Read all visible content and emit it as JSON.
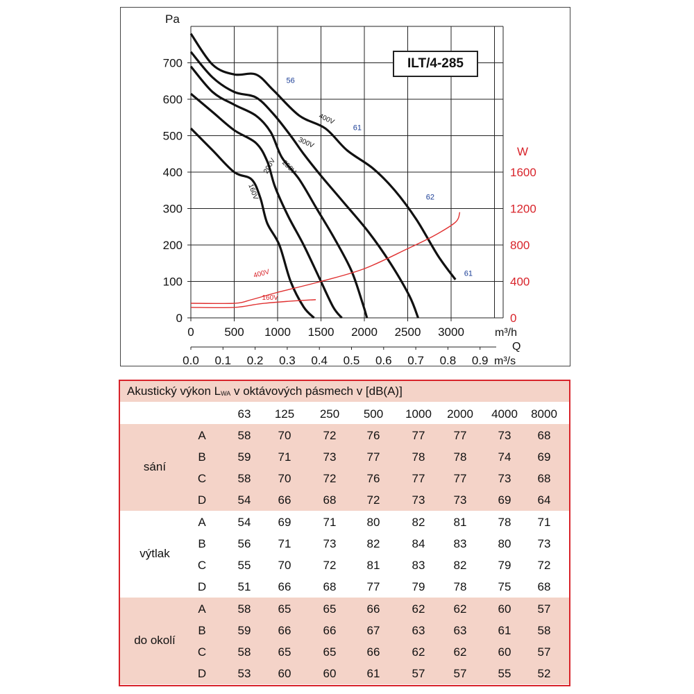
{
  "chart_data": {
    "type": "line",
    "model": "ILT/4-285",
    "y_left": {
      "unit": "Pa",
      "ticks": [
        "0",
        "100",
        "200",
        "300",
        "400",
        "500",
        "600",
        "700"
      ],
      "range": [
        0,
        800
      ]
    },
    "y_right": {
      "unit": "W",
      "ticks": [
        "0",
        "400",
        "800",
        "1200",
        "1600"
      ],
      "range": [
        0,
        1600
      ]
    },
    "x_top": {
      "unit": "m³/h",
      "ticks": [
        "0",
        "500",
        "1000",
        "1500",
        "2000",
        "2500",
        "3000"
      ],
      "range": [
        0,
        3600
      ]
    },
    "x_label": "Q",
    "x_bottom": {
      "unit": "m³/s",
      "ticks": [
        "0.0",
        "0.1",
        "0.2",
        "0.3",
        "0.4",
        "0.5",
        "0.6",
        "0.7",
        "0.8",
        "0.9"
      ]
    },
    "pressure_series": [
      {
        "name": "400V",
        "points": [
          [
            0,
            780
          ],
          [
            250,
            695
          ],
          [
            500,
            668
          ],
          [
            750,
            668
          ],
          [
            950,
            625
          ],
          [
            1250,
            555
          ],
          [
            1550,
            520
          ],
          [
            1800,
            460
          ],
          [
            2100,
            410
          ],
          [
            2350,
            350
          ],
          [
            2600,
            270
          ],
          [
            2850,
            170
          ],
          [
            3050,
            105
          ]
        ]
      },
      {
        "name": "300V",
        "points": [
          [
            0,
            730
          ],
          [
            250,
            660
          ],
          [
            500,
            620
          ],
          [
            750,
            605
          ],
          [
            950,
            560
          ],
          [
            1150,
            500
          ],
          [
            1300,
            450
          ],
          [
            1500,
            390
          ],
          [
            1750,
            320
          ],
          [
            2050,
            235
          ],
          [
            2300,
            150
          ],
          [
            2520,
            60
          ],
          [
            2620,
            0
          ]
        ]
      },
      {
        "name": "250V",
        "points": [
          [
            0,
            690
          ],
          [
            250,
            620
          ],
          [
            500,
            585
          ],
          [
            750,
            555
          ],
          [
            920,
            510
          ],
          [
            1050,
            440
          ],
          [
            1250,
            380
          ],
          [
            1450,
            300
          ],
          [
            1650,
            220
          ],
          [
            1850,
            130
          ],
          [
            1980,
            40
          ],
          [
            2030,
            0
          ]
        ]
      },
      {
        "name": "200V",
        "points": [
          [
            0,
            615
          ],
          [
            250,
            565
          ],
          [
            500,
            515
          ],
          [
            750,
            480
          ],
          [
            880,
            430
          ],
          [
            970,
            360
          ],
          [
            1120,
            280
          ],
          [
            1300,
            200
          ],
          [
            1480,
            110
          ],
          [
            1640,
            30
          ],
          [
            1740,
            0
          ]
        ]
      },
      {
        "name": "160V",
        "points": [
          [
            0,
            520
          ],
          [
            250,
            460
          ],
          [
            500,
            400
          ],
          [
            700,
            380
          ],
          [
            800,
            330
          ],
          [
            880,
            260
          ],
          [
            1020,
            200
          ],
          [
            1150,
            100
          ],
          [
            1300,
            30
          ],
          [
            1420,
            0
          ]
        ]
      }
    ],
    "power_series": [
      {
        "name": "400V",
        "points": [
          [
            0,
            160
          ],
          [
            500,
            160
          ],
          [
            700,
            200
          ],
          [
            1000,
            280
          ],
          [
            1500,
            400
          ],
          [
            2000,
            540
          ],
          [
            2500,
            760
          ],
          [
            2800,
            900
          ],
          [
            3050,
            1050
          ],
          [
            3100,
            1160
          ]
        ]
      },
      {
        "name": "160V",
        "points": [
          [
            0,
            115
          ],
          [
            500,
            115
          ],
          [
            800,
            155
          ],
          [
            1100,
            180
          ],
          [
            1440,
            200
          ]
        ]
      }
    ],
    "point_labels": [
      {
        "text": "56",
        "q": 1100,
        "p": 645,
        "color": "#1b3e96"
      },
      {
        "text": "61",
        "q": 1870,
        "p": 515,
        "color": "#1b3e96"
      },
      {
        "text": "62",
        "q": 2710,
        "p": 325,
        "color": "#1b3e96"
      },
      {
        "text": "61",
        "q": 3150,
        "p": 115,
        "color": "#1b3e96"
      }
    ],
    "curve_labels": [
      {
        "text": "400V",
        "q": 1470,
        "p": 550,
        "rot": 25,
        "color": "#111"
      },
      {
        "text": "300V",
        "q": 1235,
        "p": 485,
        "rot": 25,
        "color": "#111"
      },
      {
        "text": "250V",
        "q": 1050,
        "p": 425,
        "rot": 45,
        "color": "#111"
      },
      {
        "text": "200V",
        "q": 880,
        "p": 395,
        "rot": -60,
        "color": "#111"
      },
      {
        "text": "160V",
        "q": 665,
        "p": 365,
        "rot": 70,
        "color": "#111"
      },
      {
        "text": "400V",
        "q": 730,
        "p": 110,
        "rot": -15,
        "color": "#d8232a"
      },
      {
        "text": "160V",
        "q": 820,
        "p": 50,
        "rot": 0,
        "color": "#d8232a"
      }
    ]
  },
  "colors": {
    "pressure": "#111111",
    "power": "#e03030",
    "accent_red": "#d8232a",
    "label_blue": "#1b3e96",
    "band_pink": "#f4d3c8"
  },
  "table": {
    "title_pre": "Akustický výkon L",
    "title_sub": "WA",
    "title_post": " v oktávových pásmech v [dB(A)]",
    "headers": [
      "63",
      "125",
      "250",
      "500",
      "1000",
      "2000",
      "4000",
      "8000"
    ],
    "groups": [
      {
        "label": "sání",
        "rows": [
          {
            "letter": "A",
            "values": [
              "58",
              "70",
              "72",
              "76",
              "77",
              "77",
              "73",
              "68"
            ]
          },
          {
            "letter": "B",
            "values": [
              "59",
              "71",
              "73",
              "77",
              "78",
              "78",
              "74",
              "69"
            ]
          },
          {
            "letter": "C",
            "values": [
              "58",
              "70",
              "72",
              "76",
              "77",
              "77",
              "73",
              "68"
            ]
          },
          {
            "letter": "D",
            "values": [
              "54",
              "66",
              "68",
              "72",
              "73",
              "73",
              "69",
              "64"
            ]
          }
        ]
      },
      {
        "label": "výtlak",
        "rows": [
          {
            "letter": "A",
            "values": [
              "54",
              "69",
              "71",
              "80",
              "82",
              "81",
              "78",
              "71"
            ]
          },
          {
            "letter": "B",
            "values": [
              "56",
              "71",
              "73",
              "82",
              "84",
              "83",
              "80",
              "73"
            ]
          },
          {
            "letter": "C",
            "values": [
              "55",
              "70",
              "72",
              "81",
              "83",
              "82",
              "79",
              "72"
            ]
          },
          {
            "letter": "D",
            "values": [
              "51",
              "66",
              "68",
              "77",
              "79",
              "78",
              "75",
              "68"
            ]
          }
        ]
      },
      {
        "label": "do okolí",
        "rows": [
          {
            "letter": "A",
            "values": [
              "58",
              "65",
              "65",
              "66",
              "62",
              "62",
              "60",
              "57"
            ]
          },
          {
            "letter": "B",
            "values": [
              "59",
              "66",
              "66",
              "67",
              "63",
              "63",
              "61",
              "58"
            ]
          },
          {
            "letter": "C",
            "values": [
              "58",
              "65",
              "65",
              "66",
              "62",
              "62",
              "60",
              "57"
            ]
          },
          {
            "letter": "D",
            "values": [
              "53",
              "60",
              "60",
              "61",
              "57",
              "57",
              "55",
              "52"
            ]
          }
        ]
      }
    ]
  }
}
